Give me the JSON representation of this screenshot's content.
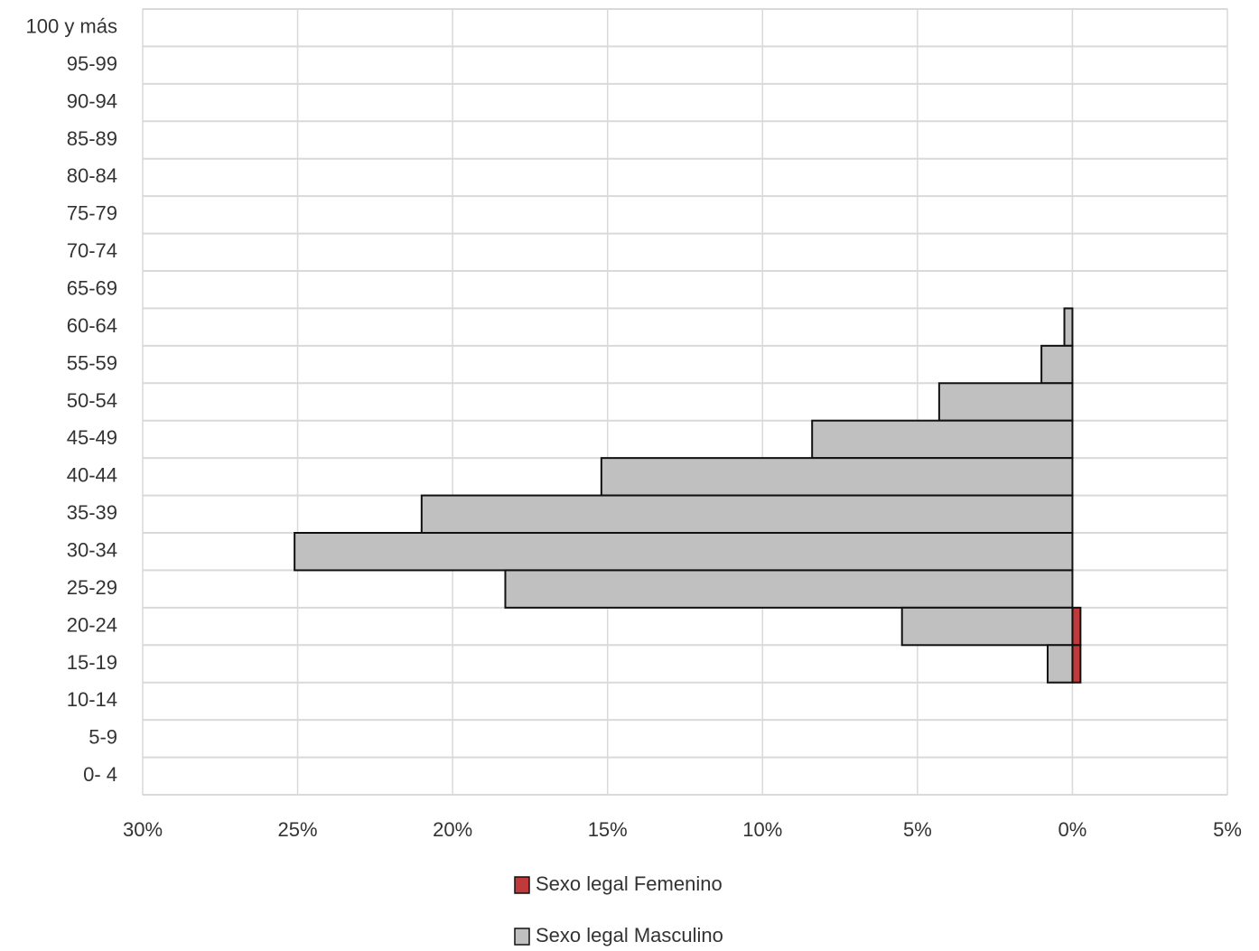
{
  "chart_data": {
    "type": "bar",
    "orientation": "horizontal",
    "categories": [
      "100 y más",
      "95-99",
      "90-94",
      "85-89",
      "80-84",
      "75-79",
      "70-74",
      "65-69",
      "60-64",
      "55-59",
      "50-54",
      "45-49",
      "40-44",
      "35-39",
      "30-34",
      "25-29",
      "20-24",
      "15-19",
      "10-14",
      "5-9",
      "0- 4"
    ],
    "series": [
      {
        "name": "Sexo legal Femenino",
        "color": "#c0393b",
        "values": [
          0,
          0,
          0,
          0,
          0,
          0,
          0,
          0,
          0,
          0,
          0,
          0,
          0,
          0,
          0,
          0,
          0.26,
          0.26,
          0,
          0,
          0
        ]
      },
      {
        "name": "Sexo legal Masculino",
        "color": "#c0c0c0",
        "values": [
          0,
          0,
          0,
          0,
          0,
          0,
          0,
          0,
          -0.26,
          -1.0,
          -4.3,
          -8.4,
          -15.2,
          -21.0,
          -25.1,
          -18.3,
          -5.5,
          -0.8,
          0,
          0,
          0
        ]
      }
    ],
    "xlim": [
      -30,
      5
    ],
    "xticks": [
      {
        "value": -30,
        "label": "30%"
      },
      {
        "value": -25,
        "label": "25%"
      },
      {
        "value": -20,
        "label": "20%"
      },
      {
        "value": -15,
        "label": "15%"
      },
      {
        "value": -10,
        "label": "10%"
      },
      {
        "value": -5,
        "label": "5%"
      },
      {
        "value": 0,
        "label": "0%"
      },
      {
        "value": 5,
        "label": "5%"
      }
    ],
    "grid": true,
    "legend": "bottom"
  }
}
